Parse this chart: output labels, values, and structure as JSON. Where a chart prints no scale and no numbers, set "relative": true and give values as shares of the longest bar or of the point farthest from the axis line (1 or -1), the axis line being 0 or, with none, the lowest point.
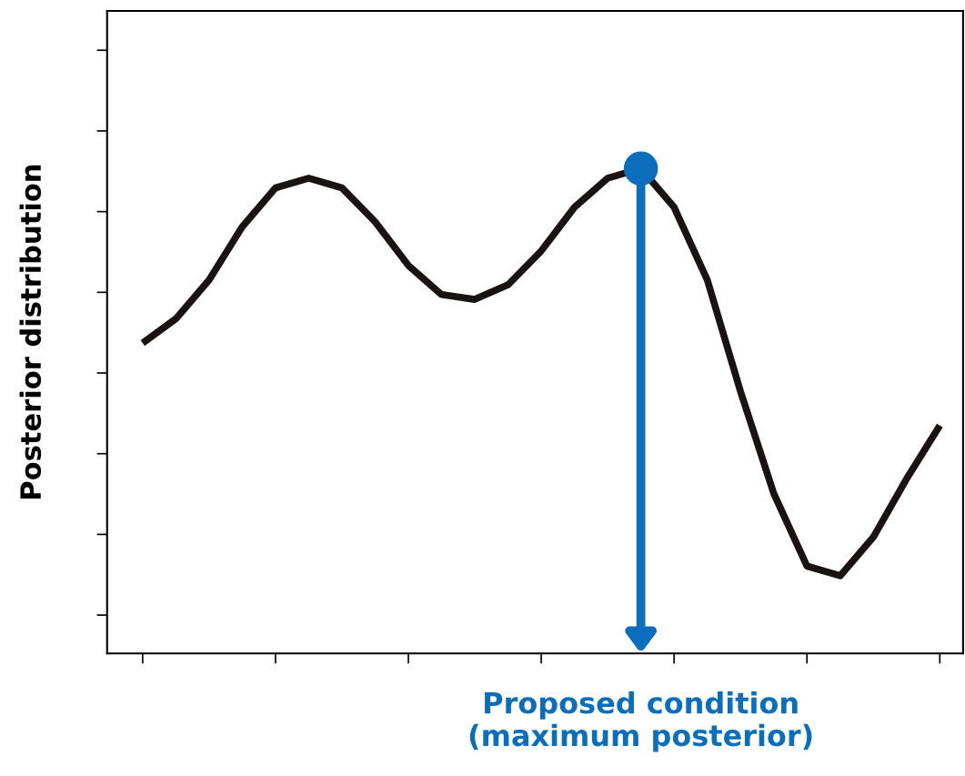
{
  "chart_data": {
    "type": "line",
    "ylabel": "Posterior distribution",
    "relative": true,
    "categories": [
      null,
      null,
      null,
      null,
      null,
      null,
      null,
      null,
      null,
      null,
      null,
      null,
      null,
      null,
      null,
      null,
      null,
      null,
      null,
      null,
      null,
      null,
      null,
      null,
      null
    ],
    "series": [
      {
        "color": "#1a1311",
        "values": [
          0.64,
          0.69,
          0.77,
          0.88,
          0.96,
          0.98,
          0.96,
          0.89,
          0.8,
          0.74,
          0.73,
          0.76,
          0.83,
          0.92,
          0.98,
          1.0,
          0.92,
          0.77,
          0.54,
          0.33,
          0.18,
          0.16,
          0.24,
          0.36,
          0.47
        ]
      }
    ],
    "annotations": [
      "Proposed condition\n(maximum posterior)"
    ],
    "grid": false,
    "legend": false,
    "tick_labels": false
  }
}
